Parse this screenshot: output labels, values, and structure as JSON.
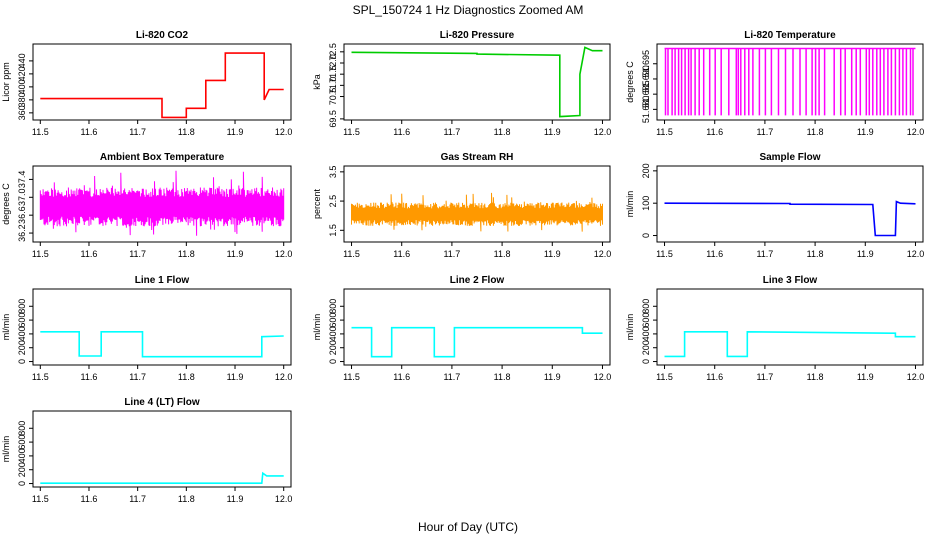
{
  "figure": {
    "title": "SPL_150724  1 Hz Diagnostics Zoomed AM",
    "xlabel": "Hour of Day (UTC)"
  },
  "chart_data": [
    {
      "type": "line",
      "title": "Li-820 CO2",
      "ylabel": "Licor ppm",
      "color": "#ff0000",
      "xlim": [
        11.485,
        12.015
      ],
      "ylim": [
        349,
        466
      ],
      "xticks": [
        "11.5",
        "11.6",
        "11.7",
        "11.8",
        "11.9",
        "12.0"
      ],
      "yticks": [
        360,
        380,
        400,
        420,
        440
      ],
      "x": [
        11.5,
        11.75,
        11.75,
        11.8,
        11.8,
        11.84,
        11.84,
        11.88,
        11.88,
        11.96,
        11.96,
        11.97,
        11.97,
        12.0
      ],
      "y": [
        382,
        382,
        353,
        353,
        367,
        367,
        410,
        410,
        452,
        452,
        380,
        396,
        396,
        396
      ]
    },
    {
      "type": "line",
      "title": "Li-820 Pressure",
      "ylabel": "kPa",
      "color": "#00cc00",
      "xlim": [
        11.485,
        12.015
      ],
      "ylim": [
        69.45,
        72.85
      ],
      "xticks": [
        "11.5",
        "11.6",
        "11.7",
        "11.8",
        "11.9",
        "12.0"
      ],
      "yticks": [
        "69.5",
        "70.5",
        "71.0",
        "71.5",
        "72.0",
        "72.5"
      ],
      "x": [
        11.5,
        11.75,
        11.75,
        11.915,
        11.915,
        11.955,
        11.955,
        11.965,
        11.98,
        12.0
      ],
      "y": [
        72.48,
        72.43,
        72.4,
        72.35,
        69.6,
        69.65,
        71.5,
        72.7,
        72.55,
        72.55
      ]
    },
    {
      "type": "line",
      "title": "Li-820 Temperature",
      "ylabel": "degrees C",
      "color": "#ff00ff",
      "xlim": [
        11.485,
        12.015
      ],
      "ylim": [
        51.6765,
        51.7015
      ],
      "xticks": [
        "11.5",
        "11.6",
        "11.7",
        "11.8",
        "11.9",
        "12.0"
      ],
      "yticks": [
        "51.680",
        "51.685",
        "51.690",
        "51.695"
      ],
      "baseline": 51.7,
      "low": 51.678,
      "drops": [
        11.502,
        11.507,
        11.515,
        11.521,
        11.528,
        11.534,
        11.541,
        11.548,
        11.553,
        11.561,
        11.569,
        11.578,
        11.59,
        11.601,
        11.613,
        11.628,
        11.643,
        11.647,
        11.652,
        11.66,
        11.668,
        11.676,
        11.689,
        11.701,
        11.713,
        11.727,
        11.741,
        11.756,
        11.77,
        11.782,
        11.794,
        11.801,
        11.808,
        11.819,
        11.838,
        11.851,
        11.86,
        11.873,
        11.882,
        11.89,
        11.902,
        11.908,
        11.915,
        11.923,
        11.93,
        11.937,
        11.945,
        11.952,
        11.96,
        11.968,
        11.975,
        11.982,
        11.99,
        11.995
      ]
    },
    {
      "type": "line",
      "title": "Ambient Box Temperature",
      "ylabel": "degrees C",
      "color": "#ff00ff",
      "xlim": [
        11.485,
        12.015
      ],
      "ylim": [
        36.0,
        37.7
      ],
      "xticks": [
        "11.5",
        "11.6",
        "11.7",
        "11.8",
        "11.9",
        "12.0"
      ],
      "yticks": [
        "36.2",
        "36.6",
        "37.0",
        "37.4"
      ],
      "band": [
        36.35,
        37.22
      ]
    },
    {
      "type": "line",
      "title": "Gas Stream RH",
      "ylabel": "percent",
      "color": "#ff9900",
      "xlim": [
        11.485,
        12.015
      ],
      "ylim": [
        1.1,
        3.7
      ],
      "xticks": [
        "11.5",
        "11.6",
        "11.7",
        "11.8",
        "11.9",
        "12.0"
      ],
      "yticks": [
        "1.5",
        "2.5",
        "3.5"
      ],
      "band": [
        1.65,
        2.45
      ]
    },
    {
      "type": "line",
      "title": "Sample Flow",
      "ylabel": "ml/min",
      "color": "#0000ff",
      "xlim": [
        11.485,
        12.015
      ],
      "ylim": [
        -20,
        215
      ],
      "xticks": [
        "11.5",
        "11.6",
        "11.7",
        "11.8",
        "11.9",
        "12.0"
      ],
      "yticks": [
        0,
        100,
        200
      ],
      "x": [
        11.5,
        11.75,
        11.75,
        11.915,
        11.92,
        11.96,
        11.962,
        11.97,
        12.0
      ],
      "y": [
        100,
        99,
        97,
        96,
        0,
        0,
        105,
        100,
        98
      ]
    },
    {
      "type": "line",
      "title": "Line 1 Flow",
      "ylabel": "ml/min",
      "color": "#00ffff",
      "xlim": [
        11.485,
        12.015
      ],
      "ylim": [
        -50,
        1050
      ],
      "xticks": [
        "11.5",
        "11.6",
        "11.7",
        "11.8",
        "11.9",
        "12.0"
      ],
      "yticks": [
        0,
        200,
        400,
        600,
        800
      ],
      "x": [
        11.5,
        11.58,
        11.58,
        11.625,
        11.625,
        11.71,
        11.71,
        11.955,
        11.955,
        12.0
      ],
      "y": [
        430,
        430,
        80,
        80,
        430,
        430,
        70,
        70,
        360,
        370
      ]
    },
    {
      "type": "line",
      "title": "Line 2 Flow",
      "ylabel": "ml/min",
      "color": "#00ffff",
      "xlim": [
        11.485,
        12.015
      ],
      "ylim": [
        -50,
        1050
      ],
      "xticks": [
        "11.5",
        "11.6",
        "11.7",
        "11.8",
        "11.9",
        "12.0"
      ],
      "yticks": [
        0,
        200,
        400,
        600,
        800
      ],
      "x": [
        11.5,
        11.54,
        11.54,
        11.58,
        11.58,
        11.665,
        11.665,
        11.705,
        11.705,
        11.96,
        11.96,
        12.0
      ],
      "y": [
        490,
        490,
        70,
        70,
        490,
        490,
        70,
        70,
        490,
        490,
        410,
        410
      ]
    },
    {
      "type": "line",
      "title": "Line 3 Flow",
      "ylabel": "ml/min",
      "color": "#00ffff",
      "xlim": [
        11.485,
        12.015
      ],
      "ylim": [
        -50,
        1050
      ],
      "xticks": [
        "11.5",
        "11.6",
        "11.7",
        "11.8",
        "11.9",
        "12.0"
      ],
      "yticks": [
        0,
        200,
        400,
        600,
        800
      ],
      "x": [
        11.5,
        11.54,
        11.54,
        11.625,
        11.625,
        11.665,
        11.665,
        11.96,
        11.96,
        12.0
      ],
      "y": [
        75,
        75,
        430,
        430,
        75,
        75,
        430,
        410,
        360,
        360
      ]
    },
    {
      "type": "line",
      "title": "Line 4 (LT) Flow",
      "ylabel": "ml/min",
      "color": "#00ffff",
      "xlim": [
        11.485,
        12.015
      ],
      "ylim": [
        -50,
        1050
      ],
      "xticks": [
        "11.5",
        "11.6",
        "11.7",
        "11.8",
        "11.9",
        "12.0"
      ],
      "yticks": [
        0,
        200,
        400,
        600,
        800
      ],
      "x": [
        11.5,
        11.955,
        11.957,
        11.965,
        12.0
      ],
      "y": [
        5,
        5,
        150,
        110,
        110
      ]
    }
  ]
}
